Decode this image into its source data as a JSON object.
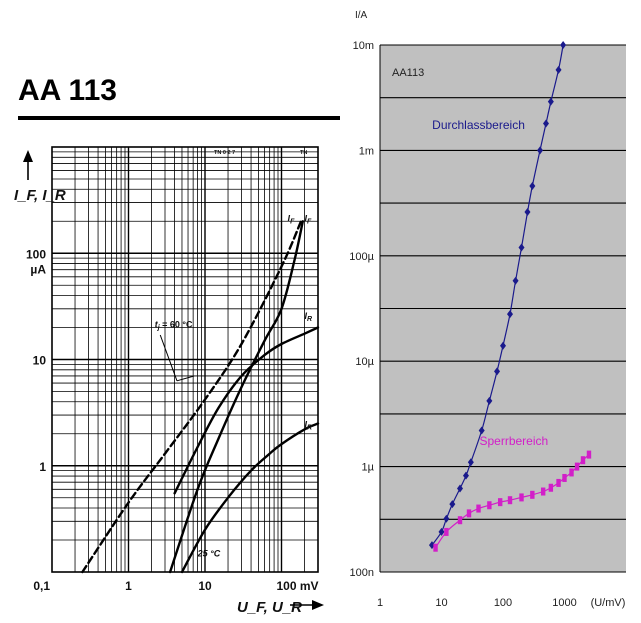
{
  "chart_data": [
    {
      "type": "line",
      "title": "AA 113",
      "ylabel": "I_F, I_R",
      "y_unit": "µA",
      "xlabel": "U_F, U_R",
      "x_unit": "mV",
      "x_scale": "log",
      "y_scale": "log",
      "xlim": [
        0.1,
        300
      ],
      "ylim": [
        0.1,
        1000
      ],
      "x_ticks": [
        {
          "value": 0.1,
          "label": "0,1"
        },
        {
          "value": 1,
          "label": "1"
        },
        {
          "value": 10,
          "label": "10"
        },
        {
          "value": 100,
          "label": "100 mV"
        }
      ],
      "y_ticks": [
        {
          "value": 1,
          "label": "1"
        },
        {
          "value": 10,
          "label": "10"
        },
        {
          "value": 100,
          "label": "100"
        }
      ],
      "y_unit_label": "µA",
      "corner_code": "TN 0 2 7",
      "corner_code_right": "TN",
      "series": [
        {
          "name": "I_F",
          "style": "dashed",
          "note": "Tj = 60 °C",
          "x": [
            0.25,
            1,
            3,
            10,
            30,
            100,
            180
          ],
          "y": [
            0.1,
            0.45,
            1.3,
            4.2,
            14,
            75,
            200
          ]
        },
        {
          "name": "I_F",
          "style": "solid",
          "note": "25 °C",
          "x": [
            3.5,
            8,
            15,
            30,
            60,
            100,
            150,
            190
          ],
          "y": [
            0.1,
            0.6,
            1.8,
            5.5,
            15,
            30,
            90,
            200
          ]
        },
        {
          "name": "I_R",
          "style": "solid",
          "note": "Tj = 60 °C",
          "x": [
            4,
            8,
            15,
            30,
            60,
            100,
            200,
            300
          ],
          "y": [
            0.55,
            1.5,
            3.5,
            7,
            11,
            14,
            17.5,
            20
          ]
        },
        {
          "name": "I_R",
          "style": "solid",
          "note": "25 °C",
          "x": [
            5,
            10,
            20,
            40,
            70,
            100,
            200,
            300
          ],
          "y": [
            0.1,
            0.25,
            0.5,
            0.9,
            1.3,
            1.6,
            2.2,
            2.5
          ]
        }
      ],
      "annotations": [
        {
          "text": "I",
          "sub": "F",
          "x": 120,
          "y": 200
        },
        {
          "text": "I",
          "sub": "F",
          "x": 200,
          "y": 200
        },
        {
          "text": "I",
          "sub": "R",
          "x": 200,
          "y": 24
        },
        {
          "text": "I",
          "sub": "R",
          "x": 200,
          "y": 2.3
        },
        {
          "text": "t",
          "sub": "j",
          "text2": " = 60 °C",
          "x": 2.2,
          "y": 20
        },
        {
          "text": "25 °C",
          "x": 8,
          "y": 0.14
        }
      ]
    },
    {
      "type": "line",
      "title": "AA113",
      "ylabel": "I/A",
      "xlabel": "(U/mV)",
      "x_scale": "log",
      "y_scale": "log",
      "xlim": [
        1,
        10000
      ],
      "ylim": [
        1e-07,
        0.01
      ],
      "x_ticks": [
        {
          "value": 1,
          "label": "1"
        },
        {
          "value": 10,
          "label": "10"
        },
        {
          "value": 100,
          "label": "100"
        },
        {
          "value": 1000,
          "label": "1000"
        },
        {
          "value": 10000,
          "label": "(U/mV)"
        }
      ],
      "y_ticks": [
        {
          "value": 1e-07,
          "label": "100n"
        },
        {
          "value": 1e-06,
          "label": "1µ"
        },
        {
          "value": 1e-05,
          "label": "10µ"
        },
        {
          "value": 0.0001,
          "label": "100µ"
        },
        {
          "value": 0.001,
          "label": "1m"
        },
        {
          "value": 0.01,
          "label": "10m"
        }
      ],
      "series": [
        {
          "name": "Durchlassbereich",
          "color": "#1a1a8c",
          "marker": "diamond",
          "x": [
            7,
            10,
            12,
            15,
            20,
            25,
            30,
            45,
            60,
            80,
            100,
            130,
            160,
            200,
            250,
            300,
            400,
            500,
            600,
            800,
            950
          ],
          "y": [
            1.8e-07,
            2.4e-07,
            3.2e-07,
            4.4e-07,
            6.2e-07,
            8.2e-07,
            1.1e-06,
            2.2e-06,
            4.2e-06,
            8e-06,
            1.4e-05,
            2.8e-05,
            5.8e-05,
            0.00012,
            0.00026,
            0.00046,
            0.001,
            0.0018,
            0.0029,
            0.0058,
            0.01
          ]
        },
        {
          "name": "Sperrbereich",
          "color": "#d21fc8",
          "marker": "square",
          "x": [
            8,
            12,
            20,
            28,
            40,
            60,
            90,
            130,
            200,
            300,
            450,
            600,
            800,
            1000,
            1300,
            1600,
            2000,
            2500
          ],
          "y": [
            1.7e-07,
            2.4e-07,
            3.1e-07,
            3.6e-07,
            4e-07,
            4.3e-07,
            4.6e-07,
            4.8e-07,
            5.1e-07,
            5.4e-07,
            5.8e-07,
            6.3e-07,
            7e-07,
            7.8e-07,
            8.8e-07,
            1e-06,
            1.15e-06,
            1.3e-06
          ]
        }
      ],
      "series_labels": [
        {
          "text": "Durchlassbereich",
          "x": 40,
          "y": 0.0016
        },
        {
          "text": "Sperrbereich",
          "x": 150,
          "y": 1.6e-06
        }
      ],
      "grid": true,
      "background": "#c0c0c0"
    }
  ]
}
